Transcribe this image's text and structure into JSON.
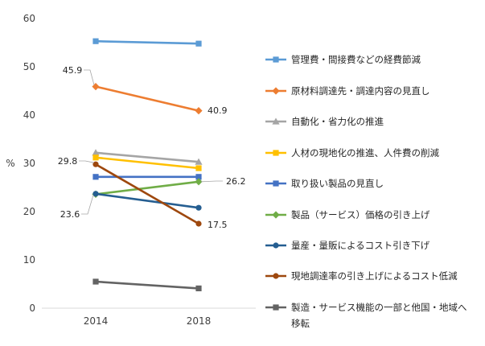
{
  "chart_data": {
    "type": "line",
    "title": "",
    "xlabel": "",
    "ylabel": "%",
    "ylim": [
      0,
      60
    ],
    "yticks": [
      0,
      10,
      20,
      30,
      40,
      50,
      60
    ],
    "categories": [
      "2014",
      "2018"
    ],
    "grid": false,
    "legend_position": "right",
    "series": [
      {
        "name": "管理費・間接費などの経費節減",
        "values": [
          55.3,
          54.8
        ],
        "color": "#5B9BD5",
        "marker": "square"
      },
      {
        "name": "原材料調達先・調達内容の見直し",
        "values": [
          45.9,
          40.9
        ],
        "color": "#ED7D31",
        "marker": "diamond"
      },
      {
        "name": "自動化・省力化の推進",
        "values": [
          32.2,
          30.3
        ],
        "color": "#A5A5A5",
        "marker": "triangle"
      },
      {
        "name": "人材の現地化の推進、人件費の削減",
        "values": [
          31.2,
          29.0
        ],
        "color": "#FFC000",
        "marker": "square"
      },
      {
        "name": "取り扱い製品の見直し",
        "values": [
          27.2,
          27.2
        ],
        "color": "#4472C4",
        "marker": "square"
      },
      {
        "name": "製品（サービス）価格の引き上げ",
        "values": [
          23.6,
          26.2
        ],
        "color": "#70AD47",
        "marker": "diamond"
      },
      {
        "name": "量産・量販によるコスト引き下げ",
        "values": [
          23.7,
          20.8
        ],
        "color": "#255E91",
        "marker": "circle"
      },
      {
        "name": "現地調達率の引き上げによるコスト低減",
        "values": [
          29.8,
          17.5
        ],
        "color": "#9E480E",
        "marker": "circle"
      },
      {
        "name": "製造・サービス機能の一部と他国・地域へ移転",
        "values": [
          5.5,
          4.1
        ],
        "color": "#636363",
        "marker": "square"
      }
    ],
    "annotations": [
      {
        "text": "45.9",
        "series": 1,
        "point": 0
      },
      {
        "text": "40.9",
        "series": 1,
        "point": 1
      },
      {
        "text": "29.8",
        "series": 7,
        "point": 0
      },
      {
        "text": "17.5",
        "series": 7,
        "point": 1
      },
      {
        "text": "23.6",
        "series": 5,
        "point": 0
      },
      {
        "text": "26.2",
        "series": 5,
        "point": 1
      }
    ]
  }
}
